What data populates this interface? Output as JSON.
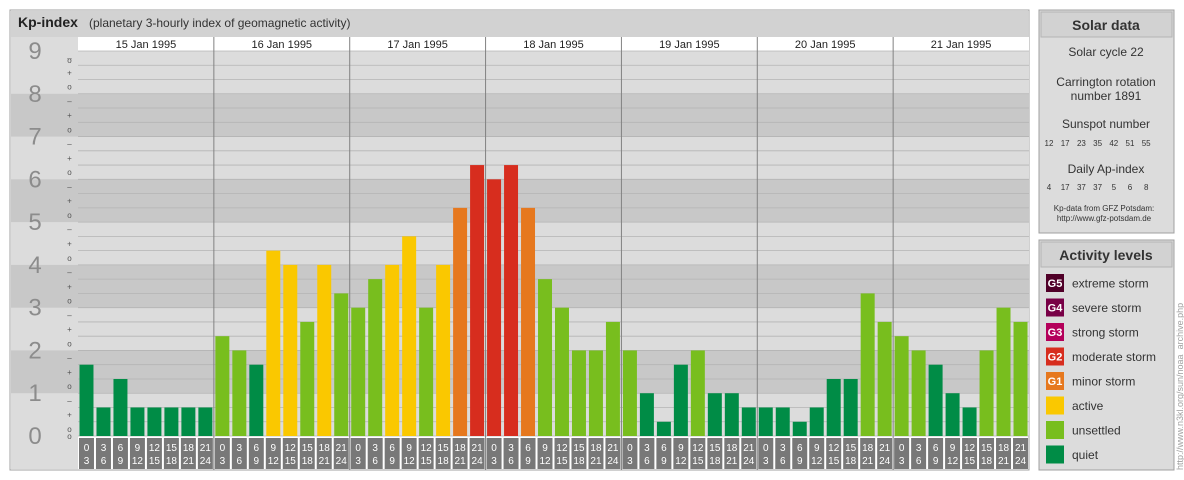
{
  "header": {
    "title": "Kp-index",
    "subtitle": "(planetary 3-hourly index of geomagnetic activity)"
  },
  "chart_data": {
    "type": "bar",
    "title": "Kp-index",
    "subtitle": "(planetary 3-hourly index of geomagnetic activity)",
    "ylim": [
      0,
      9
    ],
    "y_ticks": [
      "0",
      "1",
      "2",
      "3",
      "4",
      "5",
      "6",
      "7",
      "8",
      "9"
    ],
    "sub_ticks": [
      "–",
      "o",
      "+"
    ],
    "days": [
      "15 Jan 1995",
      "16 Jan 1995",
      "17 Jan 1995",
      "18 Jan 1995",
      "19 Jan 1995",
      "20 Jan 1995",
      "21 Jan 1995"
    ],
    "interval_top": [
      "0",
      "3",
      "6",
      "9",
      "12",
      "15",
      "18",
      "21"
    ],
    "interval_bottom": [
      "3",
      "6",
      "9",
      "12",
      "15",
      "18",
      "21",
      "24"
    ],
    "values": [
      1.667,
      0.667,
      1.333,
      0.667,
      0.667,
      0.667,
      0.667,
      0.667,
      2.333,
      2.0,
      1.667,
      4.333,
      4.0,
      2.667,
      4.0,
      3.333,
      3.0,
      3.667,
      4.0,
      4.667,
      3.0,
      4.0,
      5.333,
      6.333,
      6.0,
      6.333,
      5.333,
      3.667,
      3.0,
      2.0,
      2.0,
      2.667,
      2.0,
      1.0,
      0.333,
      1.667,
      2.0,
      1.0,
      1.0,
      0.667,
      0.667,
      0.667,
      0.333,
      0.667,
      1.333,
      1.333,
      3.333,
      2.667,
      2.333,
      2.0,
      1.667,
      1.0,
      0.667,
      2.0,
      3.0,
      2.667
    ],
    "grid": true
  },
  "colors": {
    "quiet": "#008c46",
    "unsettled": "#78be1e",
    "active": "#fac800",
    "minor": "#e6781e",
    "moderate": "#d72d1e",
    "strong": "#b4005a",
    "severe": "#780046",
    "extreme": "#500028",
    "panel": "#dcdcdc",
    "band": "#c8c8c8",
    "axis_text": "#8c8c8c"
  },
  "solar": {
    "title": "Solar data",
    "cycle": "Solar cycle 22",
    "carrington_line1": "Carrington rotation",
    "carrington_line2": "number 1891",
    "sunspot_label": "Sunspot number",
    "sunspot_values": [
      "12",
      "17",
      "23",
      "35",
      "42",
      "51",
      "55"
    ],
    "ap_label": "Daily Ap-index",
    "ap_values": [
      "4",
      "17",
      "37",
      "37",
      "5",
      "6",
      "8"
    ],
    "source_line1": "Kp-data from GFZ Potsdam:",
    "source_line2": "http://www.gfz-potsdam.de"
  },
  "activity": {
    "title": "Activity levels",
    "items": [
      {
        "badge": "G5",
        "label": "extreme storm",
        "color": "#500028"
      },
      {
        "badge": "G4",
        "label": "severe storm",
        "color": "#780046"
      },
      {
        "badge": "G3",
        "label": "strong storm",
        "color": "#b4005a"
      },
      {
        "badge": "G2",
        "label": "moderate storm",
        "color": "#d72d1e"
      },
      {
        "badge": "G1",
        "label": "minor storm",
        "color": "#e6781e"
      },
      {
        "badge": "",
        "label": "active",
        "color": "#fac800"
      },
      {
        "badge": "",
        "label": "unsettled",
        "color": "#78be1e"
      },
      {
        "badge": "",
        "label": "quiet",
        "color": "#008c46"
      }
    ]
  },
  "watermark": "http://www.n3kl.org/sun/noaa_archive.php"
}
